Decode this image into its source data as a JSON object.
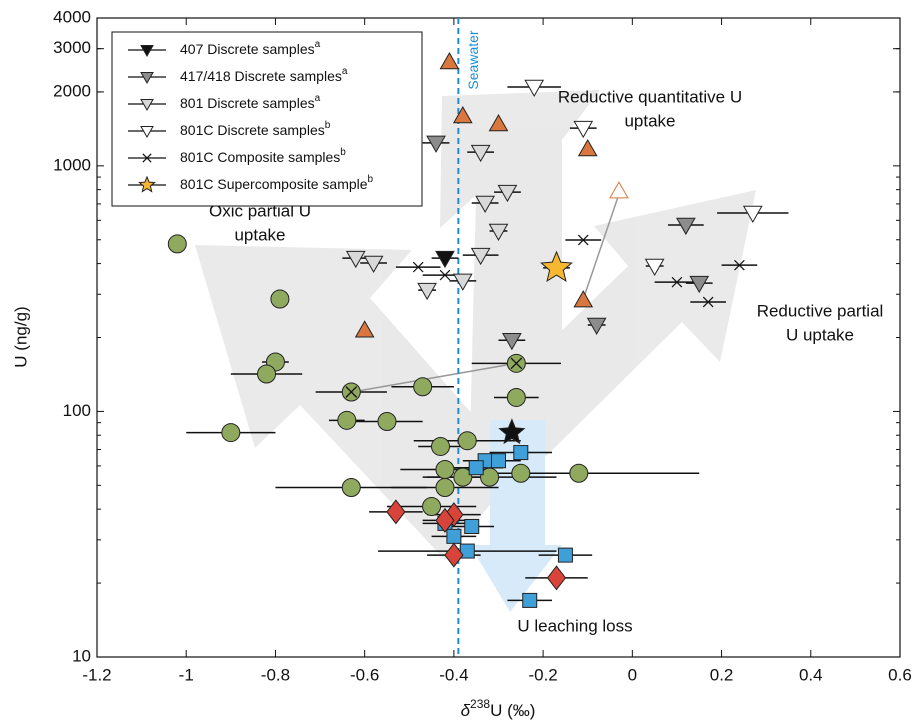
{
  "chart_data": {
    "type": "scatter",
    "xlabel": {
      "prefix": "δ",
      "sup": "238",
      "suffix": "U (‰)"
    },
    "ylabel": "U (ng/g)",
    "xlim": [
      -1.2,
      0.6
    ],
    "xticks": [
      -1.2,
      -1,
      -0.8,
      -0.6,
      -0.4,
      -0.2,
      0,
      0.2,
      0.4,
      0.6
    ],
    "ylim": [
      10,
      4000
    ],
    "yticks": [
      10,
      100,
      1000,
      2000,
      3000,
      4000
    ],
    "log_y": true,
    "legend": "upper left",
    "reference_line": {
      "x": -0.39,
      "label": "Seawater",
      "color": "#1a8fd6"
    },
    "annotations": [
      {
        "lines": [
          "Oxic partial U",
          "uptake"
        ]
      },
      {
        "lines": [
          "Reductive quantitative U",
          "uptake"
        ]
      },
      {
        "lines": [
          "Reductive partial",
          "U uptake"
        ]
      },
      {
        "lines": [
          "U leaching loss"
        ]
      }
    ],
    "series": [
      {
        "name": "407 Discrete samples",
        "name_sup": "a",
        "marker": "tri-down",
        "color": "#111111",
        "x": [
          -0.42
        ],
        "y": [
          421
        ],
        "xerr": [
          0.03
        ]
      },
      {
        "name": "417/418 Discrete samples",
        "name_sup": "a",
        "marker": "tri-down",
        "color": "#8c8c8c",
        "x": [
          -0.44,
          -0.27,
          0.12,
          0.15,
          -0.08
        ],
        "y": [
          1240,
          195,
          574,
          333,
          225
        ],
        "xerr": [
          0.03,
          0.03,
          0.04,
          0.03,
          0.02
        ]
      },
      {
        "name": "801 Discrete samples",
        "name_sup": "a",
        "marker": "tri-down",
        "color": "#d9d9d9",
        "x": [
          -0.34,
          -0.28,
          -0.33,
          -0.3,
          -0.34,
          -0.62,
          -0.58,
          -0.46,
          -0.38
        ],
        "y": [
          1138,
          782,
          706,
          543,
          433,
          421,
          402,
          312,
          340
        ],
        "xerr": [
          0.03,
          0.03,
          0.03,
          0.02,
          0.04,
          0.03,
          0.03,
          0.02,
          0.03
        ]
      },
      {
        "name": "801C Discrete samples",
        "name_sup": "b",
        "marker": "tri-down",
        "color": "#ffffff",
        "x": [
          -0.22,
          -0.11,
          0.27,
          0.05
        ],
        "y": [
          2094,
          1425,
          643,
          391
        ],
        "xerr": [
          0.06,
          0.03,
          0.08,
          0.02
        ]
      },
      {
        "name": "801C Composite samples",
        "name_sup": "b",
        "marker": "x",
        "color": "#111111",
        "x": [
          -0.48,
          -0.42,
          -0.11,
          0.1,
          0.17,
          0.24
        ],
        "y": [
          387,
          359,
          499,
          336,
          279,
          394
        ],
        "xerr": [
          0.05,
          0.05,
          0.04,
          0.05,
          0.04,
          0.04
        ]
      },
      {
        "name": "801C Supercomposite sample",
        "name_sup": "b",
        "marker": "star",
        "color": "#f7b731",
        "x": [
          -0.17
        ],
        "y": [
          384
        ],
        "xerr": [
          0.03
        ]
      },
      {
        "marker": "tri-up",
        "color": "#d9773f",
        "x": [
          -0.41,
          -0.38,
          -0.3,
          -0.1,
          -0.6,
          -0.11
        ],
        "y": [
          2648,
          1596,
          1480,
          1171,
          214,
          284
        ]
      },
      {
        "marker": "tri-up",
        "color": "#ffffff",
        "x": [
          -0.03
        ],
        "y": [
          789
        ]
      },
      {
        "marker": "circle",
        "color": "#8faa5f",
        "x": [
          -1.02,
          -0.79,
          -0.8,
          -0.82,
          -0.9,
          -0.64,
          -0.55,
          -0.47,
          -0.26,
          -0.63,
          -0.43,
          -0.37,
          -0.42,
          -0.42,
          -0.45,
          -0.38,
          -0.32,
          -0.25,
          -0.12
        ],
        "y": [
          481,
          287,
          159,
          142,
          82,
          92,
          91,
          126,
          114,
          49,
          72,
          76,
          58,
          49,
          41,
          54,
          54,
          56,
          56
        ],
        "xerr": [
          0,
          0.02,
          0.03,
          0.08,
          0.1,
          0.04,
          0.08,
          0.07,
          0.05,
          0.17,
          0.05,
          0.12,
          0.1,
          0.12,
          0.1,
          0.08,
          0.15,
          0.1,
          0.27
        ]
      },
      {
        "marker": "circle-x",
        "color": "#8faa5f",
        "x": [
          -0.63,
          -0.26
        ],
        "y": [
          120,
          157
        ],
        "xerr": [
          0.08,
          0.1
        ]
      },
      {
        "marker": "square",
        "color": "#3f9fd9",
        "x": [
          -0.33,
          -0.3,
          -0.25,
          -0.35,
          -0.42,
          -0.36,
          -0.4,
          -0.37,
          -0.15,
          -0.23
        ],
        "y": [
          63,
          63,
          68,
          59,
          35,
          34,
          31,
          27,
          26,
          17
        ],
        "xerr": [
          0.05,
          0.05,
          0.07,
          0.06,
          0.05,
          0.05,
          0.05,
          0.2,
          0.06,
          0.05
        ]
      },
      {
        "marker": "diamond",
        "color": "#d9443a",
        "x": [
          -0.53,
          -0.4,
          -0.42,
          -0.4,
          -0.17
        ],
        "y": [
          39,
          38,
          36,
          26,
          21
        ],
        "xerr": [
          0.06,
          0.06,
          0.05,
          0.06,
          0.07
        ]
      },
      {
        "marker": "star",
        "color": "#111111",
        "x": [
          -0.27
        ],
        "y": [
          82
        ]
      }
    ]
  }
}
